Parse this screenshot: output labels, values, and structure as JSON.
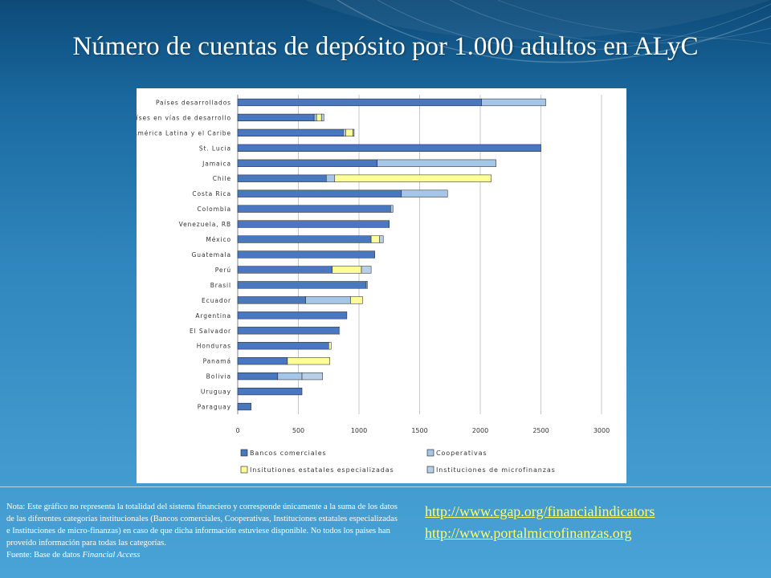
{
  "title": "Número de cuentas de depósito por 1.000 adultos en ALyC",
  "note": {
    "text": "Nota: Este gráfico no representa la totalidad del sistema financiero y corresponde únicamente a la suma de los datos de las diferentes categorías institucionales (Bancos comerciales, Cooperativas, Instituciones estatales especializadas e Instituciones de micro-finanzas) en caso de que dicha información estuviese disponible. No todos los países han proveído información para todas las categorías.",
    "source_prefix": "Fuente: Base de datos ",
    "source_name": "Financial Access"
  },
  "links": [
    "http://www.cgap.org/financialindicators",
    "http://www.portalmicrofinanzas.org"
  ],
  "colors": {
    "bancos": "#4a78c0",
    "cooperativas": "#a6c6e8",
    "estatales": "#ffff99",
    "microfinanzas": "#b8cfe8",
    "grid": "#c8c8c8"
  },
  "chart_data": {
    "type": "bar",
    "orientation": "horizontal",
    "stacked": true,
    "categories": [
      "Países desarrollados",
      "Países en vías de desarrollo",
      "América Latina y el Caribe",
      "St. Lucia",
      "Jamaica",
      "Chile",
      "Costa Rica",
      "Colombia",
      "Venezuela, RB",
      "México",
      "Guatemala",
      "Perú",
      "Brasil",
      "Ecuador",
      "Argentina",
      "El Salvador",
      "Honduras",
      "Panamá",
      "Bolivia",
      "Uruguay",
      "Paraguay"
    ],
    "series": [
      {
        "name": "Bancos comerciales",
        "values": [
          2010,
          630,
          870,
          2500,
          1150,
          730,
          1350,
          1260,
          1250,
          1100,
          1130,
          780,
          1060,
          560,
          900,
          830,
          750,
          410,
          330,
          530,
          110
        ]
      },
      {
        "name": "Cooperativas",
        "values": [
          530,
          20,
          20,
          0,
          980,
          70,
          380,
          20,
          0,
          0,
          0,
          0,
          0,
          370,
          0,
          0,
          0,
          0,
          200,
          0,
          0
        ]
      },
      {
        "name": "Insitutiones estatales especializadas",
        "values": [
          0,
          40,
          60,
          0,
          0,
          1290,
          0,
          0,
          0,
          70,
          0,
          240,
          0,
          100,
          0,
          0,
          20,
          350,
          0,
          0,
          0
        ]
      },
      {
        "name": "Instituciones de microfinanzas",
        "values": [
          0,
          20,
          10,
          0,
          0,
          0,
          0,
          0,
          0,
          30,
          0,
          80,
          10,
          0,
          0,
          10,
          0,
          0,
          170,
          0,
          0
        ]
      }
    ],
    "xlim": [
      0,
      3000
    ],
    "xticks": [
      "0",
      "500",
      "1000",
      "1500",
      "2000",
      "2500",
      "3000"
    ],
    "grid": true,
    "legend_position": "bottom"
  }
}
